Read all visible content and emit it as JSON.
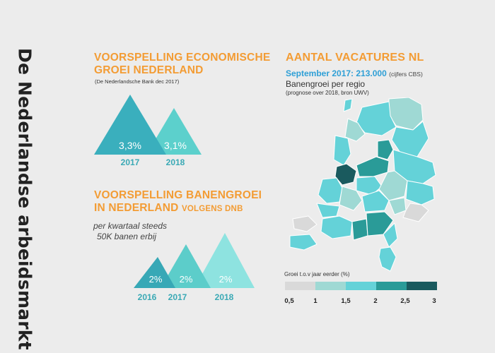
{
  "page_title": "De Nederlandse arbeidsmarkt",
  "economic": {
    "title_line1": "VOORSPELLING ECONOMISCHE",
    "title_line2": "GROEI NEDERLAND",
    "source": "(De Nederlandsche Bank dec 2017)",
    "items": [
      {
        "value": "3,3%",
        "year": "2017",
        "color": "#3aafbd"
      },
      {
        "value": "3,1%",
        "year": "2018",
        "color": "#5cd0cc"
      }
    ]
  },
  "jobs": {
    "title_line1": "VOORSPELLING BANENGROEI",
    "title_line2": "IN NEDERLAND",
    "title_suffix": "VOLGENS DNB",
    "note_line1": "per kwartaal steeds",
    "note_line2": "50K banen erbij",
    "items": [
      {
        "value": "2%",
        "year": "2016",
        "color": "#37a8b6"
      },
      {
        "value": "2%",
        "year": "2017",
        "color": "#5ccdca"
      },
      {
        "value": "2%",
        "year": "2018",
        "color": "#8ee3e0"
      }
    ]
  },
  "vacancies": {
    "title": "AANTAL VACATURES NL",
    "highlight": "September 2017: 213.000",
    "highlight_source": "(cijfers CBS)",
    "subtitle": "Banengroei per regio",
    "subtitle_note": "(prognose over 2018, bron UWV)"
  },
  "legend": {
    "title": "Groei t.o.v jaar eerder (%)",
    "ticks": [
      "0,5",
      "1",
      "1,5",
      "2",
      "2,5",
      "3"
    ],
    "tick_values": [
      0.5,
      1,
      1.5,
      2,
      2.5,
      3
    ],
    "colors": [
      "#d9d9d9",
      "#9fd9d4",
      "#64d2d8",
      "#2a9b98",
      "#1a5a5e"
    ]
  }
}
